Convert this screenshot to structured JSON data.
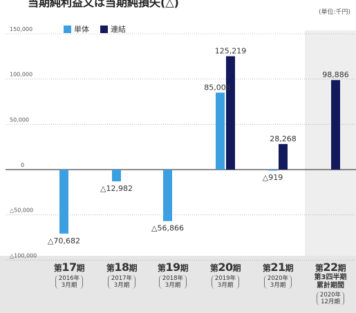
{
  "header": {
    "title": "当期純利益又は当期純損失(△)",
    "unit": "(単位:千円)"
  },
  "legend": {
    "items": [
      {
        "label": "単体",
        "color": "#3b9fe0"
      },
      {
        "label": "連結",
        "color": "#121a5c"
      }
    ]
  },
  "categories": [
    {
      "period_prefix": "第",
      "period_num": "17",
      "period_suffix": "期",
      "year": "2016年",
      "month": "3月期",
      "extra": ""
    },
    {
      "period_prefix": "第",
      "period_num": "18",
      "period_suffix": "期",
      "year": "2017年",
      "month": "3月期",
      "extra": ""
    },
    {
      "period_prefix": "第",
      "period_num": "19",
      "period_suffix": "期",
      "year": "2018年",
      "month": "3月期",
      "extra": ""
    },
    {
      "period_prefix": "第",
      "period_num": "20",
      "period_suffix": "期",
      "year": "2019年",
      "month": "3月期",
      "extra": ""
    },
    {
      "period_prefix": "第",
      "period_num": "21",
      "period_suffix": "期",
      "year": "2020年",
      "month": "3月期",
      "extra": ""
    },
    {
      "period_prefix": "第",
      "period_num": "22",
      "period_suffix": "期",
      "year": "2020年",
      "month": "12月期",
      "extra": "第3四半期累計期間"
    }
  ],
  "chart_data": {
    "type": "bar",
    "title": "当期純利益又は当期純損失(△)",
    "unit": "(単位:千円)",
    "categories": [
      "第17期",
      "第18期",
      "第19期",
      "第20期",
      "第21期",
      "第22期"
    ],
    "series": [
      {
        "name": "単体",
        "color": "#3b9fe0",
        "values": [
          -70682,
          -12982,
          -56866,
          85008,
          -919,
          null
        ],
        "labels": [
          "△70,682",
          "△12,982",
          "△56,866",
          "85,008",
          "△919",
          ""
        ]
      },
      {
        "name": "連結",
        "color": "#121a5c",
        "values": [
          null,
          null,
          null,
          125219,
          28268,
          98886
        ],
        "labels": [
          "",
          "",
          "",
          "125,219",
          "28,268",
          "98,886"
        ]
      }
    ],
    "yticks": [
      150000,
      100000,
      50000,
      0,
      -50000,
      -100000
    ],
    "ytick_labels": [
      "150,000",
      "100,000",
      "50,000",
      "0",
      "△50,000",
      "△100,000"
    ],
    "ylim": [
      -100000,
      150000
    ],
    "grid": "horizontal-dotted",
    "legend_position": "top-left",
    "highlight_category": "第22期"
  }
}
